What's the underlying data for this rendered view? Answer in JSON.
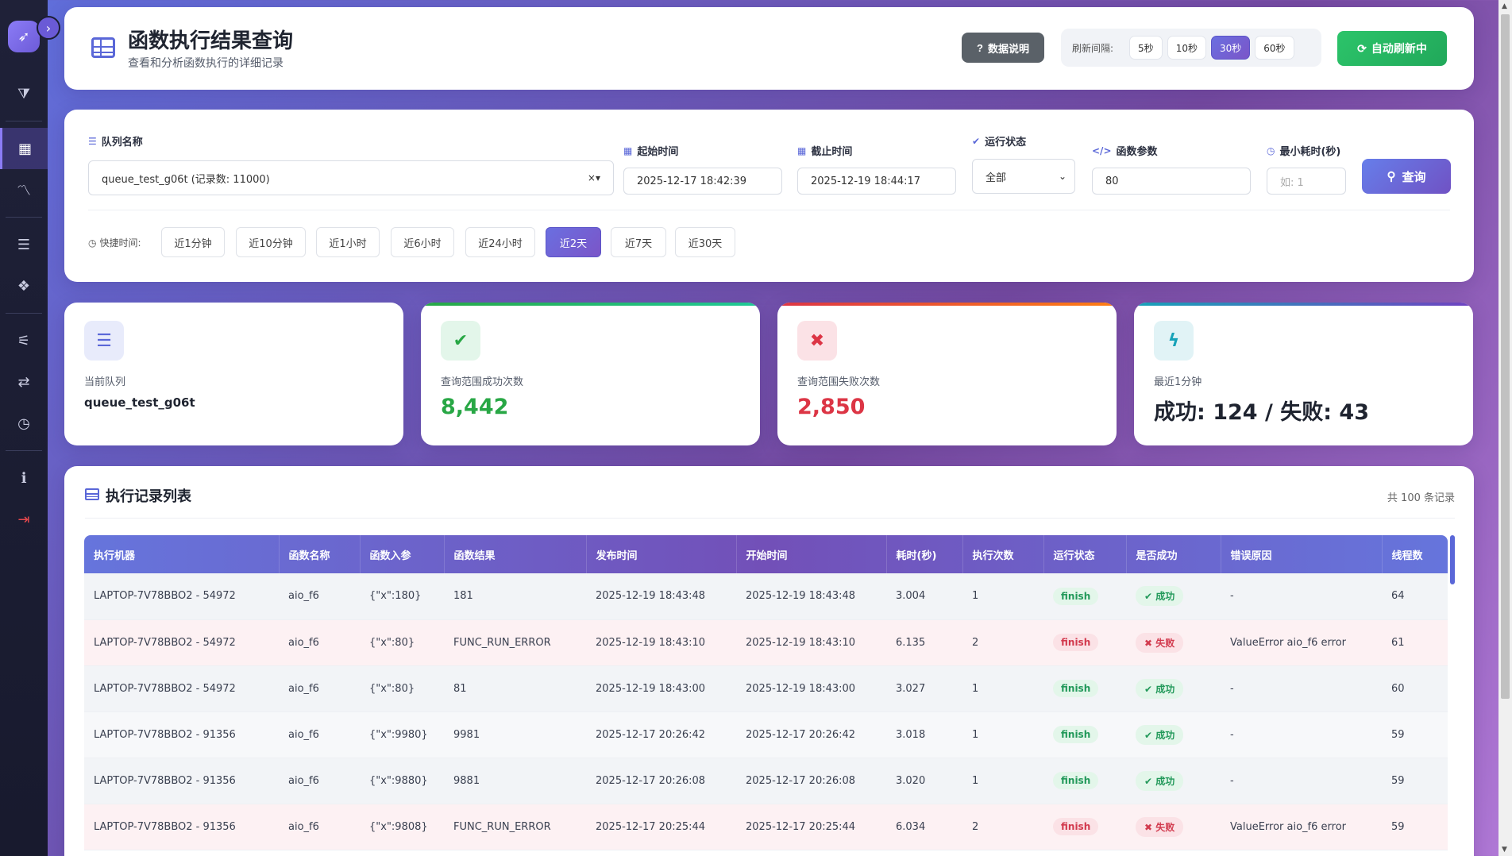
{
  "header": {
    "title": "函数执行结果查询",
    "subtitle": "查看和分析函数执行的详细记录",
    "doc_button": "数据说明",
    "refresh_label": "刷新间隔:",
    "intervals": [
      "5秒",
      "10秒",
      "30秒",
      "60秒"
    ],
    "active_interval": "30秒",
    "auto_refresh_button": "自动刷新中"
  },
  "filters": {
    "queue_label": "队列名称",
    "queue_value": "queue_test_g06t (记录数: 11000)",
    "start_label": "起始时间",
    "start_value": "2025-12-17 18:42:39",
    "end_label": "截止时间",
    "end_value": "2025-12-19 18:44:17",
    "status_label": "运行状态",
    "status_value": "全部",
    "params_label": "函数参数",
    "params_value": "80",
    "min_cost_label": "最小耗时(秒)",
    "min_cost_placeholder": "如: 1",
    "query_button": "查询",
    "quick_label": "快捷时间:",
    "quick_options": [
      "近1分钟",
      "近10分钟",
      "近1小时",
      "近6小时",
      "近24小时",
      "近2天",
      "近7天",
      "近30天"
    ],
    "quick_active": "近2天"
  },
  "stats": {
    "queue": {
      "label": "当前队列",
      "value": "queue_test_g06t"
    },
    "success": {
      "label": "查询范围成功次数",
      "value": "8,442",
      "color": "#28a745"
    },
    "fail": {
      "label": "查询范围失败次数",
      "value": "2,850",
      "color": "#dc3545"
    },
    "recent": {
      "label": "最近1分钟",
      "value": "成功: 124 / 失败: 43"
    }
  },
  "records": {
    "title": "执行记录列表",
    "count_text": "共 100 条记录",
    "columns": [
      "执行机器",
      "函数名称",
      "函数入参",
      "函数结果",
      "发布时间",
      "开始时间",
      "耗时(秒)",
      "执行次数",
      "运行状态",
      "是否成功",
      "错误原因",
      "线程数"
    ],
    "rows": [
      {
        "machine": "LAPTOP-7V78BBO2 - 54972",
        "func": "aio_f6",
        "params": "{\"x\":180}",
        "result": "181",
        "publish": "2025-12-19 18:43:48",
        "start": "2025-12-19 18:43:48",
        "cost": "3.004",
        "runs": "1",
        "status": "finish",
        "success": "成功",
        "ok": true,
        "error": "-",
        "threads": "64"
      },
      {
        "machine": "LAPTOP-7V78BBO2 - 54972",
        "func": "aio_f6",
        "params": "{\"x\":80}",
        "result": "FUNC_RUN_ERROR",
        "publish": "2025-12-19 18:43:10",
        "start": "2025-12-19 18:43:10",
        "cost": "6.135",
        "runs": "2",
        "status": "finish",
        "success": "失败",
        "ok": false,
        "error": "ValueError aio_f6 error",
        "threads": "61"
      },
      {
        "machine": "LAPTOP-7V78BBO2 - 54972",
        "func": "aio_f6",
        "params": "{\"x\":80}",
        "result": "81",
        "publish": "2025-12-19 18:43:00",
        "start": "2025-12-19 18:43:00",
        "cost": "3.027",
        "runs": "1",
        "status": "finish",
        "success": "成功",
        "ok": true,
        "error": "-",
        "threads": "60"
      },
      {
        "machine": "LAPTOP-7V78BBO2 - 91356",
        "func": "aio_f6",
        "params": "{\"x\":9980}",
        "result": "9981",
        "publish": "2025-12-17 20:26:42",
        "start": "2025-12-17 20:26:42",
        "cost": "3.018",
        "runs": "1",
        "status": "finish",
        "success": "成功",
        "ok": true,
        "error": "-",
        "threads": "59"
      },
      {
        "machine": "LAPTOP-7V78BBO2 - 91356",
        "func": "aio_f6",
        "params": "{\"x\":9880}",
        "result": "9881",
        "publish": "2025-12-17 20:26:08",
        "start": "2025-12-17 20:26:08",
        "cost": "3.020",
        "runs": "1",
        "status": "finish",
        "success": "成功",
        "ok": true,
        "error": "-",
        "threads": "59"
      },
      {
        "machine": "LAPTOP-7V78BBO2 - 91356",
        "func": "aio_f6",
        "params": "{\"x\":9808}",
        "result": "FUNC_RUN_ERROR",
        "publish": "2025-12-17 20:25:44",
        "start": "2025-12-17 20:25:44",
        "cost": "6.034",
        "runs": "2",
        "status": "finish",
        "success": "失败",
        "ok": false,
        "error": "ValueError aio_f6 error",
        "threads": "59"
      }
    ]
  }
}
